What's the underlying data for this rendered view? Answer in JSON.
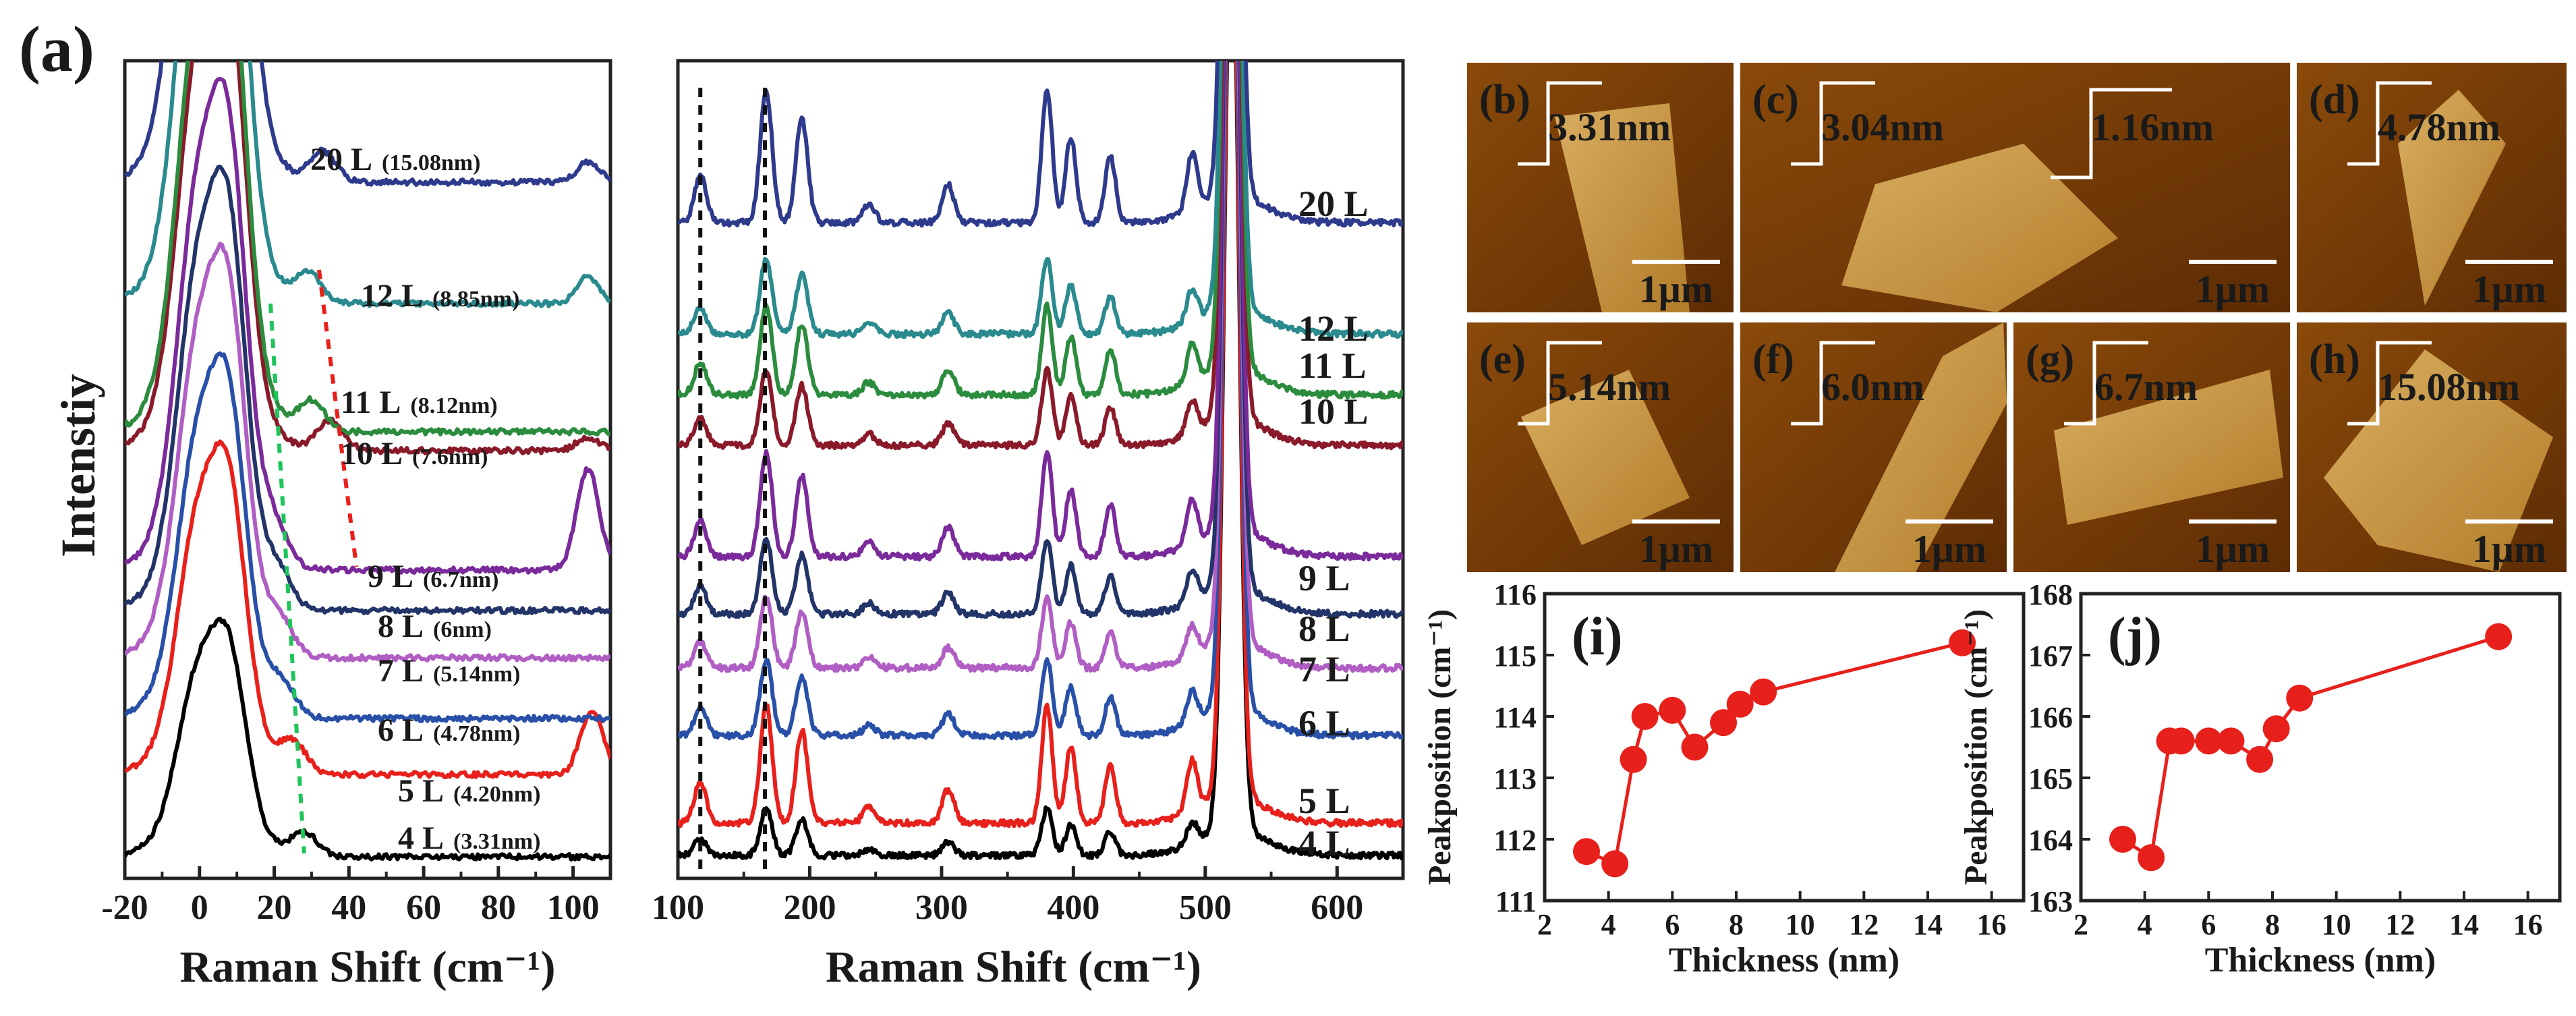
{
  "figure": {
    "panel_a_label": "(a)"
  },
  "chart_data": [
    {
      "id": "low-freq",
      "type": "line",
      "xlabel": "Raman Shift (cm⁻¹)",
      "ylabel": "Intenstiy",
      "xlim": [
        -20,
        110
      ],
      "xticks": [
        -20,
        0,
        20,
        40,
        60,
        80,
        100
      ],
      "xtick_labels": [
        "-20",
        "0",
        "20",
        "40",
        "60",
        "80",
        "100"
      ],
      "series": [
        {
          "name": "4 L",
          "label": "4 L",
          "sub": "(3.31nm)",
          "color": "#000000"
        },
        {
          "name": "5 L",
          "label": "5 L",
          "sub": "(4.20nm)",
          "color": "#e8201c"
        },
        {
          "name": "6 L",
          "label": "6 L",
          "sub": "(4.78nm)",
          "color": "#2950a8"
        },
        {
          "name": "7 L",
          "label": "7 L",
          "sub": "(5.14nm)",
          "color": "#b05ec4"
        },
        {
          "name": "8 L",
          "label": "8 L",
          "sub": "(6nm)",
          "color": "#223468"
        },
        {
          "name": "9 L",
          "label": "9 L",
          "sub": "(6.7nm)",
          "color": "#7a2a9a"
        },
        {
          "name": "10 L",
          "label": "10 L",
          "sub": "(7.6nm)",
          "color": "#8a1a2a"
        },
        {
          "name": "11 L",
          "label": "11 L",
          "sub": "(8.12nm)",
          "color": "#2b8c3e"
        },
        {
          "name": "12 L",
          "label": "12 L",
          "sub": "(8.85nm)",
          "color": "#2a8a8e"
        },
        {
          "name": "20 L",
          "label": "20 L",
          "sub": "(15.08nm)",
          "color": "#2e3a8c"
        }
      ],
      "annotations": [
        {
          "type": "dashed-guide",
          "color": "#1fc45a",
          "from": [
            19,
            "12 L"
          ],
          "to": [
            28,
            "4 L"
          ]
        },
        {
          "type": "dashed-guide",
          "color": "#e8201c",
          "from": [
            32,
            "12 L"
          ],
          "to": [
            42,
            "8 L"
          ]
        }
      ]
    },
    {
      "id": "high-freq",
      "type": "line",
      "xlabel": "Raman Shift (cm⁻¹)",
      "xlim": [
        100,
        650
      ],
      "xticks": [
        100,
        200,
        300,
        400,
        500,
        600
      ],
      "xtick_labels": [
        "100",
        "200",
        "300",
        "400",
        "500",
        "600"
      ],
      "series_labels": [
        "4 L",
        "5 L",
        "6 L",
        "7 L",
        "8 L",
        "9 L",
        "10 L",
        "11 L",
        "12 L",
        "20 L"
      ],
      "peaks_cm": [
        117,
        167,
        194,
        380,
        398,
        428,
        490,
        520
      ],
      "annotations": [
        {
          "type": "dashed-vertical",
          "x": 117
        },
        {
          "type": "dashed-vertical",
          "x": 166
        }
      ]
    },
    {
      "id": "afm-images",
      "type": "image-grid",
      "panels": [
        {
          "label": "(b)",
          "height": "3.31nm",
          "scale": "1μm"
        },
        {
          "label": "(c)",
          "height": "3.04nm",
          "height2": "1.16nm",
          "scale": "1μm"
        },
        {
          "label": "(d)",
          "height": "4.78nm",
          "scale": "1μm"
        },
        {
          "label": "(e)",
          "height": "5.14nm",
          "scale": "1μm"
        },
        {
          "label": "(f)",
          "height": "6.0nm",
          "scale": "1μm"
        },
        {
          "label": "(g)",
          "height": "6.7nm",
          "scale": "1μm"
        },
        {
          "label": "(h)",
          "height": "15.08nm",
          "scale": "1μm"
        }
      ]
    },
    {
      "id": "panel-i",
      "type": "scatter",
      "title": "(i)",
      "xlabel": "Thickness (nm)",
      "ylabel": "Peakposition (cm⁻¹)",
      "xlim": [
        2,
        17
      ],
      "ylim": [
        111,
        116
      ],
      "xticks": [
        2,
        4,
        6,
        8,
        10,
        12,
        14,
        16
      ],
      "yticks": [
        111,
        112,
        113,
        114,
        115,
        116
      ],
      "x": [
        3.31,
        4.2,
        4.78,
        5.14,
        6.0,
        6.7,
        7.6,
        8.12,
        8.85,
        15.08
      ],
      "y": [
        111.8,
        111.6,
        113.3,
        114.0,
        114.1,
        113.5,
        113.9,
        114.2,
        114.4,
        115.2
      ],
      "color": "#e8201c"
    },
    {
      "id": "panel-j",
      "type": "scatter",
      "title": "(j)",
      "xlabel": "Thickness (nm)",
      "ylabel": "Peakposition (cm⁻¹)",
      "xlim": [
        2,
        17
      ],
      "ylim": [
        163,
        168
      ],
      "xticks": [
        2,
        4,
        6,
        8,
        10,
        12,
        14,
        16
      ],
      "yticks": [
        163,
        164,
        165,
        166,
        167,
        168
      ],
      "x": [
        3.31,
        4.2,
        4.78,
        5.14,
        6.0,
        6.7,
        7.6,
        8.12,
        8.85,
        15.08
      ],
      "y": [
        164.0,
        163.7,
        165.6,
        165.6,
        165.6,
        165.6,
        165.3,
        165.8,
        166.3,
        167.3
      ],
      "color": "#e8201c"
    }
  ]
}
